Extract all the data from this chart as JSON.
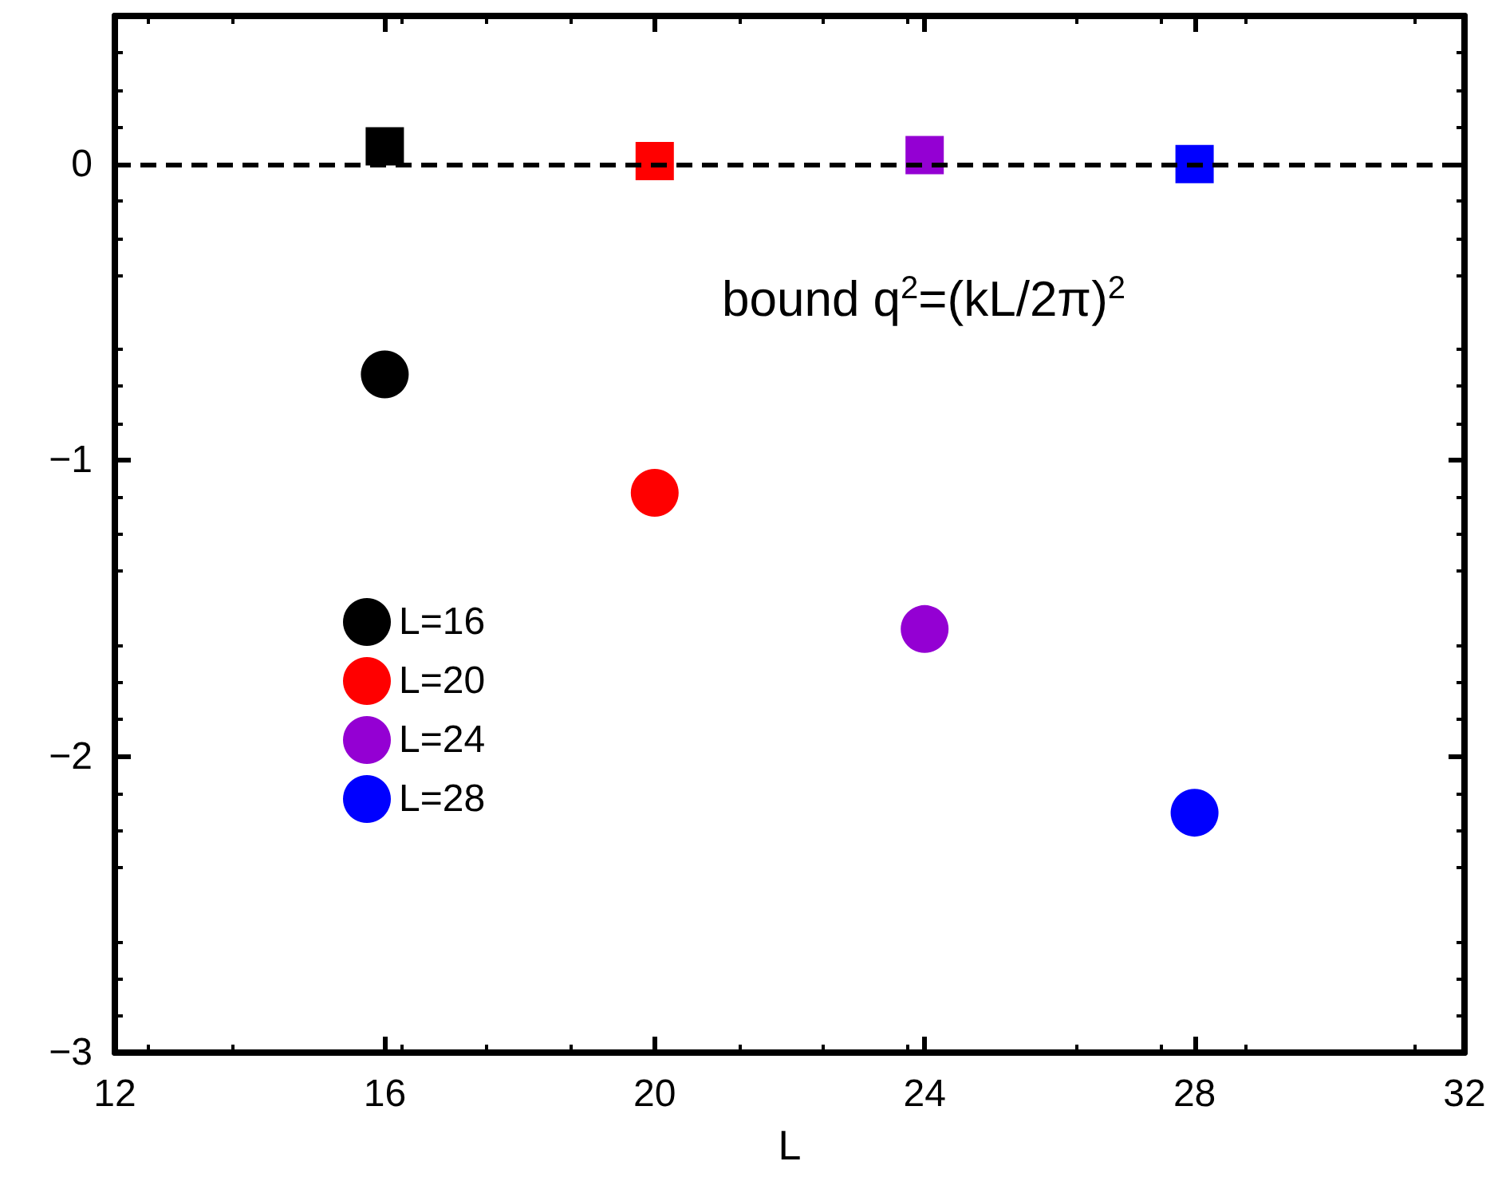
{
  "chart_data": {
    "type": "scatter",
    "xlabel": "L",
    "annotations": [
      "bound q$^{2}$=(kL/2π)$^{2}$"
    ],
    "xlim": [
      12,
      32
    ],
    "xticks": [
      12,
      16,
      20,
      24,
      28,
      32
    ],
    "ylim": [
      -3,
      0.5
    ],
    "yticks": [
      -3,
      -2,
      -1,
      0
    ],
    "grid": false,
    "legend": "bottom left",
    "ref_lines": [
      {
        "axis": "y",
        "value": 0,
        "color": "#000000",
        "line_style": "dashed"
      }
    ],
    "series": [
      {
        "name": "L=16",
        "color": "#000000",
        "marker": "circle",
        "x": [
          16
        ],
        "values": [
          -0.71
        ]
      },
      {
        "name": "L=20",
        "color": "#ff0000",
        "marker": "circle",
        "x": [
          20
        ],
        "values": [
          -1.11
        ]
      },
      {
        "name": "L=24",
        "color": "#9400d3",
        "marker": "circle",
        "x": [
          24
        ],
        "values": [
          -1.57
        ]
      },
      {
        "name": "L=28",
        "color": "#0000ff",
        "marker": "circle",
        "x": [
          28
        ],
        "values": [
          -2.19
        ]
      },
      {
        "color": "#000000",
        "marker": "square",
        "x": [
          16
        ],
        "values": [
          0.06
        ]
      },
      {
        "color": "#ff0000",
        "marker": "square",
        "x": [
          20
        ],
        "values": [
          0.01
        ]
      },
      {
        "color": "#9400d3",
        "marker": "square",
        "x": [
          24
        ],
        "values": [
          0.03
        ]
      },
      {
        "color": "#0000ff",
        "marker": "square",
        "x": [
          28
        ],
        "values": [
          0.0
        ]
      }
    ]
  }
}
